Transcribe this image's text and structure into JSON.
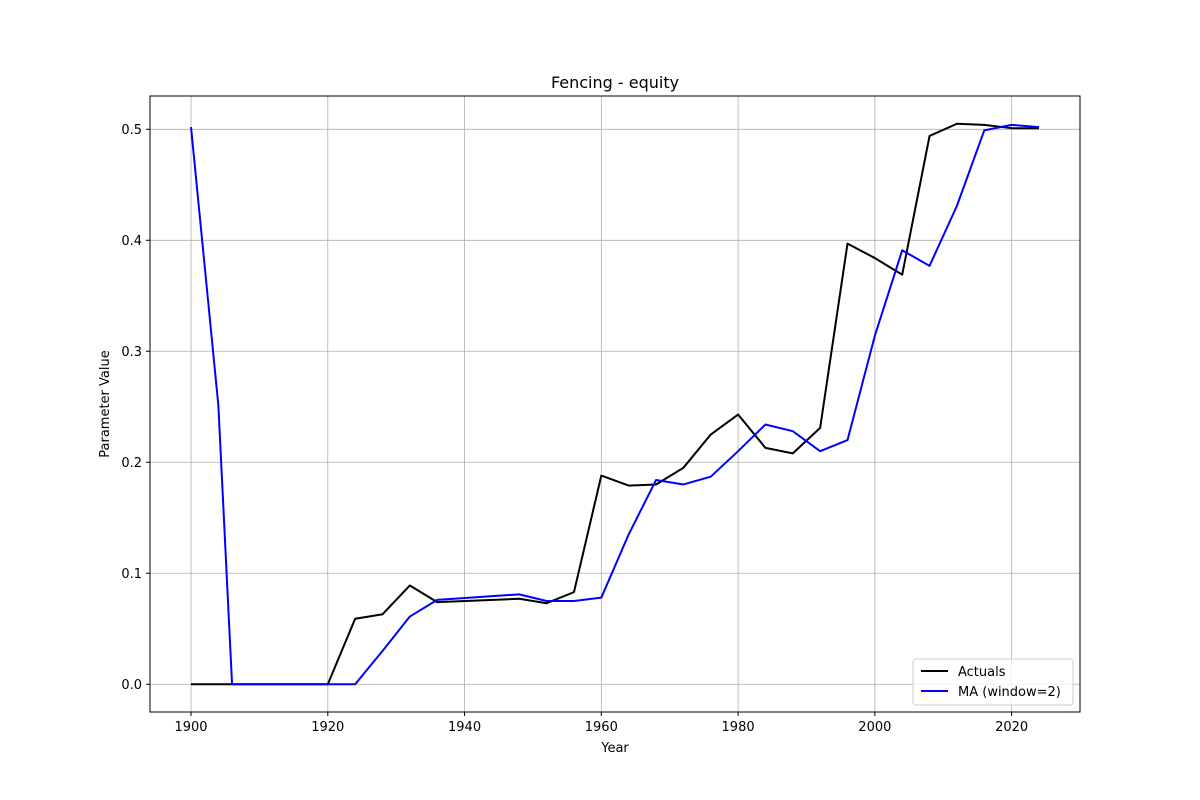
{
  "chart_data": {
    "type": "line",
    "title": "Fencing - equity",
    "xlabel": "Year",
    "ylabel": "Parameter Value",
    "xlim": [
      1894,
      2030
    ],
    "ylim": [
      -0.025,
      0.53
    ],
    "xticks": [
      1900,
      1920,
      1940,
      1960,
      1980,
      2000,
      2020
    ],
    "yticks": [
      "0.0",
      "0.1",
      "0.2",
      "0.3",
      "0.4",
      "0.5"
    ],
    "grid": true,
    "legend_position": "lower-right",
    "series": [
      {
        "name": "Actuals",
        "color": "#000000",
        "points": [
          [
            1900,
            0.0
          ],
          [
            1904,
            0.0
          ],
          [
            1906,
            0.0
          ],
          [
            1920,
            0.0
          ],
          [
            1924,
            0.059
          ],
          [
            1928,
            0.063
          ],
          [
            1932,
            0.089
          ],
          [
            1936,
            0.074
          ],
          [
            1948,
            0.077
          ],
          [
            1952,
            0.073
          ],
          [
            1956,
            0.083
          ],
          [
            1960,
            0.188
          ],
          [
            1964,
            0.179
          ],
          [
            1968,
            0.18
          ],
          [
            1972,
            0.195
          ],
          [
            1976,
            0.225
          ],
          [
            1980,
            0.243
          ],
          [
            1984,
            0.213
          ],
          [
            1988,
            0.208
          ],
          [
            1992,
            0.231
          ],
          [
            1996,
            0.397
          ],
          [
            2000,
            0.384
          ],
          [
            2004,
            0.369
          ],
          [
            2008,
            0.494
          ],
          [
            2012,
            0.505
          ],
          [
            2016,
            0.504
          ],
          [
            2020,
            0.501
          ],
          [
            2024,
            0.501
          ]
        ]
      },
      {
        "name": "MA (window=2)",
        "color": "#0000ff",
        "points": [
          [
            1900,
            0.502
          ],
          [
            1904,
            0.251
          ],
          [
            1906,
            0.0
          ],
          [
            1920,
            0.0
          ],
          [
            1924,
            0.0
          ],
          [
            1928,
            0.03
          ],
          [
            1932,
            0.061
          ],
          [
            1936,
            0.076
          ],
          [
            1948,
            0.081
          ],
          [
            1952,
            0.075
          ],
          [
            1956,
            0.075
          ],
          [
            1960,
            0.078
          ],
          [
            1964,
            0.135
          ],
          [
            1968,
            0.184
          ],
          [
            1972,
            0.18
          ],
          [
            1976,
            0.187
          ],
          [
            1980,
            0.21
          ],
          [
            1984,
            0.234
          ],
          [
            1988,
            0.228
          ],
          [
            1992,
            0.21
          ],
          [
            1996,
            0.22
          ],
          [
            2000,
            0.314
          ],
          [
            2004,
            0.391
          ],
          [
            2008,
            0.377
          ],
          [
            2012,
            0.431
          ],
          [
            2016,
            0.499
          ],
          [
            2020,
            0.504
          ],
          [
            2024,
            0.502
          ]
        ]
      }
    ]
  }
}
